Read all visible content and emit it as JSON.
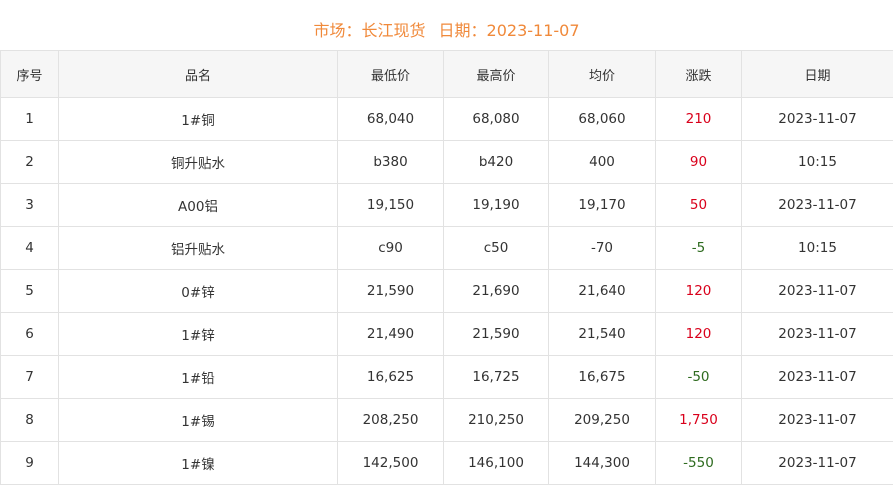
{
  "header": {
    "market_label": "市场：长江现货",
    "date_label": "日期：2023-11-07"
  },
  "colors": {
    "title": "#f0893a",
    "up": "#d9001b",
    "down": "#2e6b1f"
  },
  "table": {
    "columns": [
      "序号",
      "品名",
      "最低价",
      "最高价",
      "均价",
      "涨跌",
      "日期"
    ],
    "rows": [
      {
        "no": "1",
        "name": "1#铜",
        "low": "68,040",
        "high": "68,080",
        "avg": "68,060",
        "change": "210",
        "date": "2023-11-07"
      },
      {
        "no": "2",
        "name": "铜升贴水",
        "low": "b380",
        "high": "b420",
        "avg": "400",
        "change": "90",
        "date": "10:15"
      },
      {
        "no": "3",
        "name": "A00铝",
        "low": "19,150",
        "high": "19,190",
        "avg": "19,170",
        "change": "50",
        "date": "2023-11-07"
      },
      {
        "no": "4",
        "name": "铝升贴水",
        "low": "c90",
        "high": "c50",
        "avg": "-70",
        "change": "-5",
        "date": "10:15"
      },
      {
        "no": "5",
        "name": "0#锌",
        "low": "21,590",
        "high": "21,690",
        "avg": "21,640",
        "change": "120",
        "date": "2023-11-07"
      },
      {
        "no": "6",
        "name": "1#锌",
        "low": "21,490",
        "high": "21,590",
        "avg": "21,540",
        "change": "120",
        "date": "2023-11-07"
      },
      {
        "no": "7",
        "name": "1#铅",
        "low": "16,625",
        "high": "16,725",
        "avg": "16,675",
        "change": "-50",
        "date": "2023-11-07"
      },
      {
        "no": "8",
        "name": "1#锡",
        "low": "208,250",
        "high": "210,250",
        "avg": "209,250",
        "change": "1,750",
        "date": "2023-11-07"
      },
      {
        "no": "9",
        "name": "1#镍",
        "low": "142,500",
        "high": "146,100",
        "avg": "144,300",
        "change": "-550",
        "date": "2023-11-07"
      }
    ]
  }
}
